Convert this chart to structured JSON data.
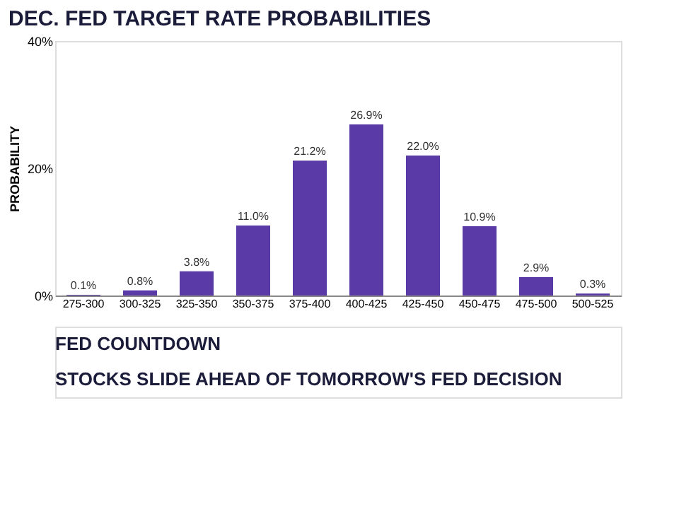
{
  "chart_data": {
    "type": "bar",
    "title": "DEC. FED TARGET RATE PROBABILITIES",
    "ylabel": "PROBABILITY",
    "categories": [
      "275-300",
      "300-325",
      "325-350",
      "350-375",
      "375-400",
      "400-425",
      "425-450",
      "450-475",
      "475-500",
      "500-525"
    ],
    "values": [
      0.1,
      0.8,
      3.8,
      11.0,
      21.2,
      26.9,
      22.0,
      10.9,
      2.9,
      0.3
    ],
    "value_labels": [
      "0.1%",
      "0.8%",
      "3.8%",
      "11.0%",
      "21.2%",
      "26.9%",
      "22.0%",
      "10.9%",
      "2.9%",
      "0.3%"
    ],
    "color": "#5a3aa6",
    "ylim": [
      0,
      40
    ],
    "yticks": [
      {
        "value": 0,
        "label": "0%"
      },
      {
        "value": 20,
        "label": "20%"
      },
      {
        "value": 40,
        "label": "40%"
      }
    ],
    "annotations": [
      "FED COUNTDOWN",
      "STOCKS SLIDE AHEAD OF TOMORROW'S FED DECISION"
    ]
  }
}
